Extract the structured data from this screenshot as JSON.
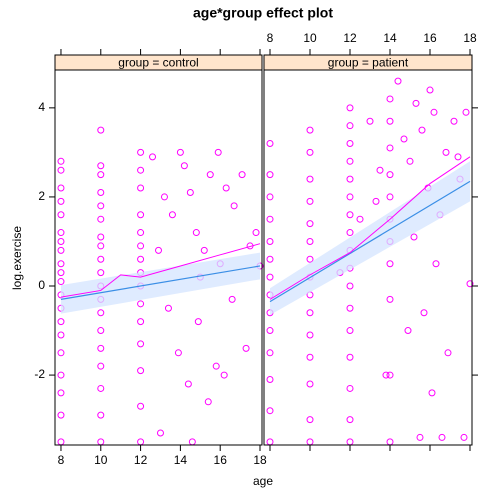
{
  "chart_data": {
    "type": "scatter",
    "title": "age*group effect plot",
    "x_label": "age",
    "y_label": "log.exercise",
    "xlim": [
      7.7,
      18.1
    ],
    "xticks": [
      8,
      10,
      12,
      14,
      16,
      18
    ],
    "ylim": [
      -3.57,
      4.85
    ],
    "yticks": [
      -2,
      0,
      2,
      4
    ],
    "point_color": "#ff00ff",
    "fit_color": "#3a8ee6",
    "band_color": "#d4e4ff",
    "strip_color": "#ffe5cc",
    "panels": [
      {
        "strip": "group = control",
        "points": [
          [
            8,
            2.8
          ],
          [
            8,
            2.6
          ],
          [
            8,
            2.2
          ],
          [
            8,
            1.9
          ],
          [
            8,
            1.6
          ],
          [
            8,
            1.2
          ],
          [
            8,
            1.0
          ],
          [
            8,
            0.8
          ],
          [
            8,
            0.5
          ],
          [
            8,
            0.3
          ],
          [
            8,
            0.1
          ],
          [
            8,
            -0.2
          ],
          [
            8,
            -0.5
          ],
          [
            8,
            -0.8
          ],
          [
            8,
            -1.1
          ],
          [
            8,
            -1.5
          ],
          [
            8,
            -2.0
          ],
          [
            8,
            -2.4
          ],
          [
            8,
            -2.9
          ],
          [
            8,
            -3.5
          ],
          [
            10,
            3.5
          ],
          [
            10,
            2.7
          ],
          [
            10,
            2.5
          ],
          [
            10,
            2.1
          ],
          [
            10,
            1.8
          ],
          [
            10,
            1.5
          ],
          [
            10,
            1.1
          ],
          [
            10,
            0.9
          ],
          [
            10,
            0.6
          ],
          [
            10,
            0.3
          ],
          [
            10,
            0.0
          ],
          [
            10,
            -0.3
          ],
          [
            10,
            -0.6
          ],
          [
            10,
            -1.0
          ],
          [
            10,
            -1.4
          ],
          [
            10,
            -1.8
          ],
          [
            10,
            -2.3
          ],
          [
            10,
            -2.9
          ],
          [
            10,
            -3.5
          ],
          [
            12,
            3.0
          ],
          [
            12,
            2.6
          ],
          [
            12,
            2.2
          ],
          [
            12,
            1.6
          ],
          [
            12,
            1.2
          ],
          [
            12,
            0.9
          ],
          [
            12,
            0.6
          ],
          [
            12,
            0.3
          ],
          [
            12,
            0.0
          ],
          [
            12,
            -0.4
          ],
          [
            12,
            -0.8
          ],
          [
            12,
            -1.3
          ],
          [
            12,
            -1.9
          ],
          [
            12,
            -2.7
          ],
          [
            12,
            -3.5
          ],
          [
            12.6,
            2.9
          ],
          [
            13.2,
            2.0
          ],
          [
            13.6,
            1.6
          ],
          [
            14.0,
            3.0
          ],
          [
            14.2,
            2.7
          ],
          [
            14.5,
            2.1
          ],
          [
            14.8,
            1.2
          ],
          [
            15.2,
            0.8
          ],
          [
            15.5,
            2.5
          ],
          [
            15.9,
            3.0
          ],
          [
            16.3,
            2.2
          ],
          [
            16.7,
            1.8
          ],
          [
            17.1,
            2.5
          ],
          [
            17.5,
            0.9
          ],
          [
            13.4,
            -0.5
          ],
          [
            13.9,
            -1.5
          ],
          [
            14.4,
            -2.2
          ],
          [
            14.9,
            -0.8
          ],
          [
            15.4,
            -2.6
          ],
          [
            15.8,
            -1.8
          ],
          [
            16.2,
            -2.0
          ],
          [
            16.6,
            -0.3
          ],
          [
            17.3,
            -1.4
          ],
          [
            18.0,
            0.45
          ],
          [
            13.0,
            -3.3
          ],
          [
            14.6,
            -3.5
          ],
          [
            12.9,
            0.8
          ],
          [
            16.0,
            0.5
          ],
          [
            15.0,
            0.2
          ],
          [
            17.8,
            1.2
          ]
        ],
        "fit": {
          "x": [
            8,
            18
          ],
          "values": [
            -0.3,
            0.45
          ],
          "lower": [
            -0.62,
            0.15
          ],
          "upper": [
            0.02,
            0.75
          ]
        },
        "smooth": {
          "x": [
            8,
            10,
            11,
            12,
            14,
            16,
            18
          ],
          "values": [
            -0.25,
            -0.1,
            0.25,
            0.2,
            0.45,
            0.7,
            0.95
          ]
        }
      },
      {
        "strip": "group = patient",
        "points": [
          [
            8,
            3.2
          ],
          [
            8,
            2.5
          ],
          [
            8,
            2.0
          ],
          [
            8,
            1.5
          ],
          [
            8,
            1.0
          ],
          [
            8,
            0.6
          ],
          [
            8,
            0.2
          ],
          [
            8,
            -0.2
          ],
          [
            8,
            -0.6
          ],
          [
            8,
            -1.0
          ],
          [
            8,
            -1.5
          ],
          [
            8,
            -2.1
          ],
          [
            8,
            -2.8
          ],
          [
            8,
            -3.5
          ],
          [
            10,
            3.5
          ],
          [
            10,
            3.0
          ],
          [
            10,
            2.4
          ],
          [
            10,
            1.9
          ],
          [
            10,
            1.4
          ],
          [
            10,
            1.0
          ],
          [
            10,
            0.6
          ],
          [
            10,
            0.2
          ],
          [
            10,
            -0.2
          ],
          [
            10,
            -0.6
          ],
          [
            10,
            -1.1
          ],
          [
            10,
            -1.6
          ],
          [
            10,
            -2.2
          ],
          [
            10,
            -3.0
          ],
          [
            10,
            -3.5
          ],
          [
            12,
            4.0
          ],
          [
            12,
            3.6
          ],
          [
            12,
            3.2
          ],
          [
            12,
            2.8
          ],
          [
            12,
            2.4
          ],
          [
            12,
            2.0
          ],
          [
            12,
            1.6
          ],
          [
            12,
            1.2
          ],
          [
            12,
            0.8
          ],
          [
            12,
            0.4
          ],
          [
            12,
            0.0
          ],
          [
            12,
            -0.5
          ],
          [
            12,
            -1.0
          ],
          [
            12,
            -1.6
          ],
          [
            12,
            -2.3
          ],
          [
            12,
            -3.0
          ],
          [
            12,
            -3.5
          ],
          [
            14,
            4.2
          ],
          [
            14,
            3.7
          ],
          [
            14,
            3.1
          ],
          [
            14,
            2.5
          ],
          [
            14,
            2.0
          ],
          [
            14,
            1.5
          ],
          [
            14,
            1.0
          ],
          [
            14,
            0.5
          ],
          [
            14,
            -0.3
          ],
          [
            14,
            -2.0
          ],
          [
            14,
            -3.5
          ],
          [
            13.0,
            3.7
          ],
          [
            13.5,
            2.6
          ],
          [
            14.4,
            4.6
          ],
          [
            14.7,
            3.3
          ],
          [
            15.0,
            2.8
          ],
          [
            15.3,
            4.1
          ],
          [
            15.6,
            3.5
          ],
          [
            15.9,
            2.2
          ],
          [
            16.2,
            3.9
          ],
          [
            16.5,
            1.6
          ],
          [
            16.8,
            3.0
          ],
          [
            17.2,
            3.7
          ],
          [
            17.5,
            2.4
          ],
          [
            17.8,
            3.9
          ],
          [
            16.0,
            4.4
          ],
          [
            15.2,
            1.1
          ],
          [
            15.7,
            -0.6
          ],
          [
            16.3,
            0.5
          ],
          [
            16.9,
            -1.5
          ],
          [
            17.4,
            2.9
          ],
          [
            18.0,
            0.05
          ],
          [
            13.8,
            -2.0
          ],
          [
            15.5,
            -3.4
          ],
          [
            16.6,
            -3.4
          ],
          [
            17.7,
            -3.4
          ],
          [
            14.9,
            -1.0
          ],
          [
            16.1,
            -2.4
          ],
          [
            13.3,
            1.9
          ],
          [
            12.5,
            1.5
          ],
          [
            11.5,
            0.3
          ]
        ],
        "fit": {
          "x": [
            8,
            18
          ],
          "values": [
            -0.35,
            2.35
          ],
          "lower": [
            -0.65,
            1.9
          ],
          "upper": [
            -0.05,
            2.8
          ]
        },
        "smooth": {
          "x": [
            8,
            10,
            12,
            14,
            16,
            18
          ],
          "values": [
            -0.3,
            0.25,
            0.75,
            1.5,
            2.3,
            2.9
          ]
        }
      }
    ]
  }
}
